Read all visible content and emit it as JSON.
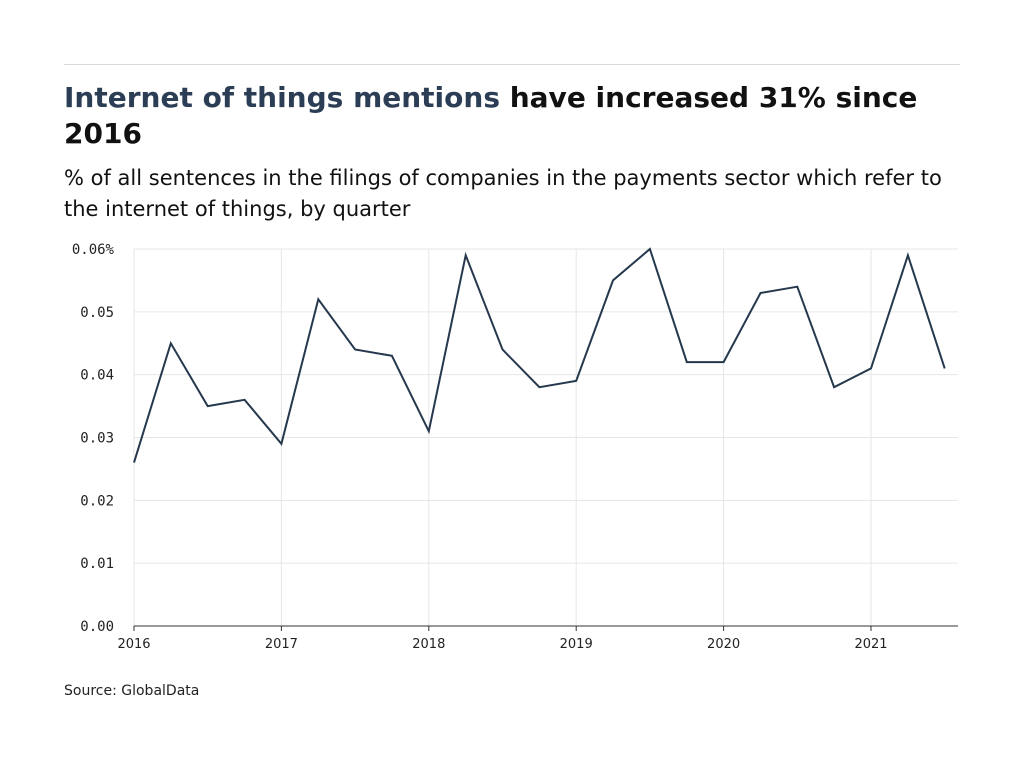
{
  "header": {
    "title_highlight": "Internet of things mentions",
    "title_rest": " have increased 31% since 2016",
    "subtitle": "% of all sentences in the filings of companies in the payments sector which refer to the internet of things, by quarter"
  },
  "source": "Source: GlobalData",
  "colors": {
    "line": "#25384d",
    "title_highlight": "#2c3e55",
    "grid": "#e6e6e6",
    "axis": "#333333"
  },
  "chart_data": {
    "type": "line",
    "title": "",
    "xlabel": "",
    "ylabel": "",
    "grid": true,
    "legend": "none",
    "x_start": "2016 Q1",
    "x_tick_labels": [
      "2016",
      "2017",
      "2018",
      "2019",
      "2020",
      "2021"
    ],
    "y_tick_labels": [
      "0.00",
      "0.01",
      "0.02",
      "0.03",
      "0.04",
      "0.05",
      "0.06%"
    ],
    "ylim": [
      0,
      0.06
    ],
    "series": [
      {
        "values": [
          0.026,
          0.045,
          0.035,
          0.036,
          0.029,
          0.052,
          0.044,
          0.043,
          0.031,
          0.059,
          0.044,
          0.038,
          0.039,
          0.055,
          0.06,
          0.042,
          0.042,
          0.053,
          0.054,
          0.038,
          0.041,
          0.059,
          0.041
        ]
      }
    ]
  }
}
